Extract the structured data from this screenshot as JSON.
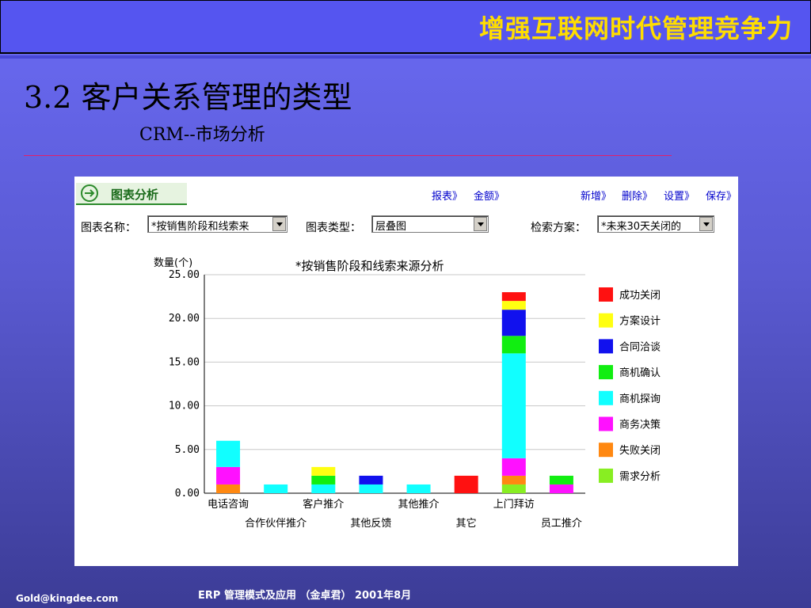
{
  "header": {
    "title": "增强互联网时代管理竞争力"
  },
  "slide": {
    "title": "3.2 客户关系管理的类型",
    "subtitle": "CRM--市场分析"
  },
  "panel": {
    "tab_label": "图表分析",
    "links_left": [
      "报表》",
      "金额》"
    ],
    "links_right": [
      "新增》",
      "删除》",
      "设置》",
      "保存》"
    ],
    "form": {
      "chart_name_label": "图表名称：",
      "chart_name_value": "*按销售阶段和线索来",
      "chart_type_label": "图表类型：",
      "chart_type_value": "层叠图",
      "search_plan_label": "检索方案：",
      "search_plan_value": "*未来30天关闭的"
    }
  },
  "chart_data": {
    "type": "bar",
    "stacked": true,
    "title": "*按销售阶段和线索来源分析",
    "ylabel": "数量(个)",
    "ylim": [
      0,
      25
    ],
    "yticks": [
      "0.00",
      "5.00",
      "10.00",
      "15.00",
      "20.00",
      "25.00"
    ],
    "grid": true,
    "legend_position": "right",
    "categories": [
      "电话咨询",
      "合作伙伴推介",
      "客户推介",
      "其他反馈",
      "其他推介",
      "其它",
      "上门拜访",
      "员工推介"
    ],
    "series": [
      {
        "name": "需求分析",
        "color": "#88ee22",
        "values": [
          0,
          0,
          0,
          0,
          0,
          0,
          1,
          0
        ]
      },
      {
        "name": "失败关闭",
        "color": "#ff8811",
        "values": [
          1,
          0,
          0,
          0,
          0,
          0,
          1,
          0
        ]
      },
      {
        "name": "商务决策",
        "color": "#ff11ff",
        "values": [
          2,
          0,
          0,
          0,
          0,
          0,
          2,
          1
        ]
      },
      {
        "name": "商机探询",
        "color": "#11ffff",
        "values": [
          3,
          1,
          1,
          1,
          1,
          0,
          12,
          0
        ]
      },
      {
        "name": "商机确认",
        "color": "#11ee11",
        "values": [
          0,
          0,
          1,
          0,
          0,
          0,
          2,
          1
        ]
      },
      {
        "name": "合同洽谈",
        "color": "#1111ee",
        "values": [
          0,
          0,
          0,
          1,
          0,
          0,
          3,
          0
        ]
      },
      {
        "name": "方案设计",
        "color": "#ffff11",
        "values": [
          0,
          0,
          1,
          0,
          0,
          0,
          1,
          0
        ]
      },
      {
        "name": "成功关闭",
        "color": "#ff1111",
        "values": [
          0,
          0,
          0,
          0,
          0,
          2,
          1,
          0
        ]
      }
    ]
  },
  "footer": {
    "email": "Gold@kingdee.com",
    "caption": "ERP 管理模式及应用 （金卓君） 2001年8月"
  }
}
